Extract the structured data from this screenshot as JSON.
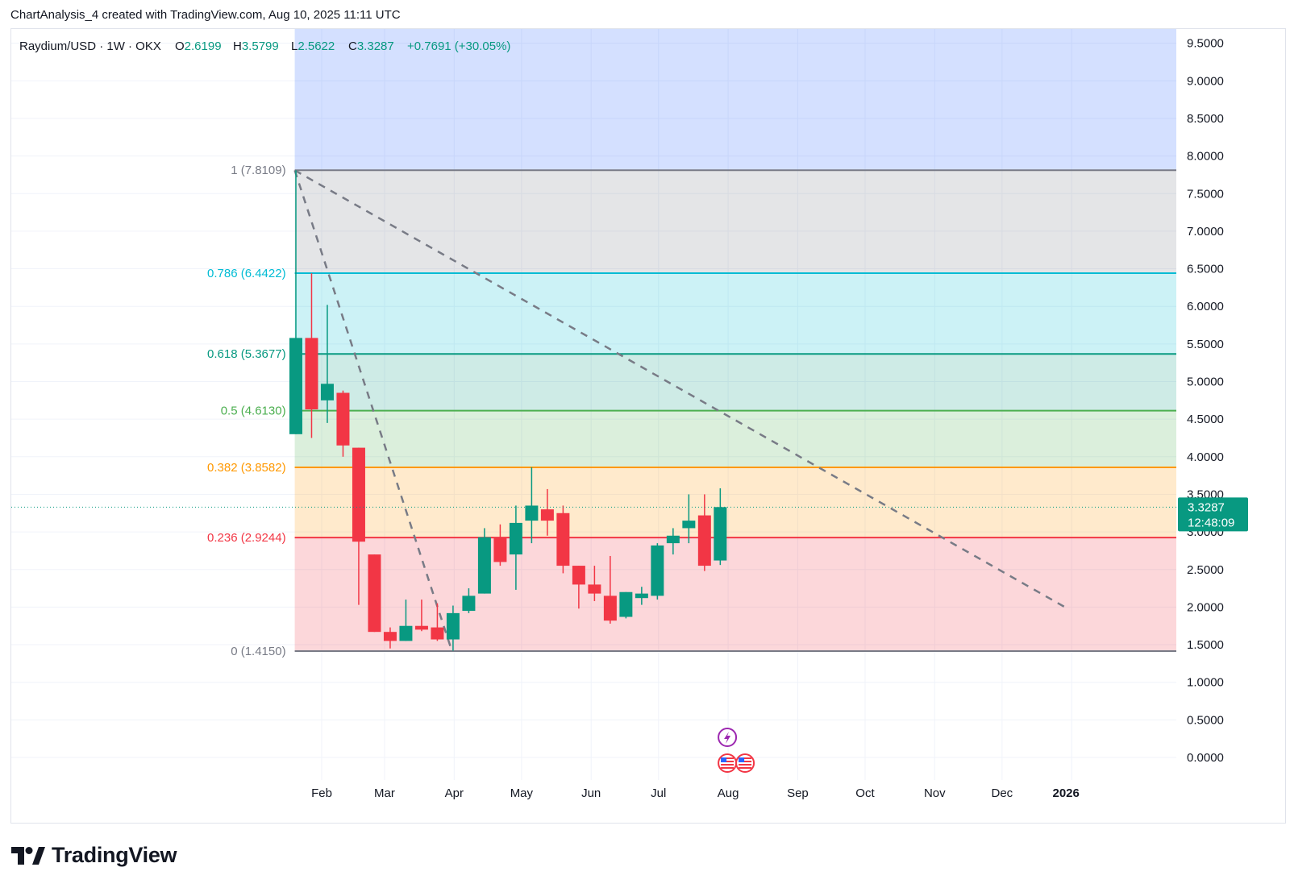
{
  "header": {
    "attribution": "ChartAnalysis_4 created with TradingView.com, Aug 10, 2025 11:11 UTC"
  },
  "legend": {
    "symbol": "Raydium/USD · 1W · OKX",
    "open_label": "O",
    "open_value": "2.6199",
    "high_label": "H",
    "high_value": "3.5799",
    "low_label": "L",
    "low_value": "2.5622",
    "close_label": "C",
    "close_value": "3.3287",
    "change": "+0.7691 (+30.05%)"
  },
  "price_tag": {
    "price": "3.3287",
    "countdown": "12:48:09"
  },
  "footer": {
    "brand": "TradingView"
  },
  "colors": {
    "up": "#089981",
    "down": "#f23645",
    "grid": "#f0f3fa",
    "axis_text": "#131722",
    "fib_1": "#787b86",
    "fib_786": "#00bcd4",
    "fib_618": "#089981",
    "fib_5": "#4caf50",
    "fib_382": "#ff9800",
    "fib_236": "#f23645",
    "fib_0": "#787b86",
    "trendline": "#787b86",
    "event_lightning": "#9c27b0"
  },
  "chart_data": {
    "type": "candlestick",
    "symbol": "Raydium/USD",
    "timeframe": "1W",
    "exchange": "OKX",
    "ylim": [
      0,
      9.5
    ],
    "y_ticks": [
      "9.5000",
      "9.0000",
      "8.5000",
      "8.0000",
      "7.5000",
      "7.0000",
      "6.5000",
      "6.0000",
      "5.5000",
      "5.0000",
      "4.5000",
      "4.0000",
      "3.5000",
      "3.0000",
      "2.5000",
      "2.0000",
      "1.5000",
      "1.0000",
      "0.5000",
      "0.0000"
    ],
    "x_ticks": [
      "Feb",
      "Mar",
      "Apr",
      "May",
      "Jun",
      "Jul",
      "Aug",
      "Sep",
      "Oct",
      "Nov",
      "Dec",
      "2026"
    ],
    "x_tick_dates": [
      "2025-02-01",
      "2025-03-01",
      "2025-04-01",
      "2025-05-01",
      "2025-06-01",
      "2025-07-01",
      "2025-08-01",
      "2025-09-01",
      "2025-10-01",
      "2025-11-01",
      "2025-12-01",
      "2026-01-01"
    ],
    "candles": [
      {
        "date": "2025-01-20",
        "open": 4.3,
        "high": 7.81,
        "low": 4.3,
        "close": 5.58
      },
      {
        "date": "2025-01-27",
        "open": 5.58,
        "high": 6.44,
        "low": 4.25,
        "close": 4.63
      },
      {
        "date": "2025-02-03",
        "open": 4.75,
        "high": 6.02,
        "low": 4.45,
        "close": 4.97
      },
      {
        "date": "2025-02-10",
        "open": 4.85,
        "high": 4.88,
        "low": 4.0,
        "close": 4.15
      },
      {
        "date": "2025-02-17",
        "open": 4.12,
        "high": 4.12,
        "low": 2.03,
        "close": 2.87
      },
      {
        "date": "2025-02-24",
        "open": 2.7,
        "high": 2.7,
        "low": 1.67,
        "close": 1.67
      },
      {
        "date": "2025-03-03",
        "open": 1.67,
        "high": 1.73,
        "low": 1.45,
        "close": 1.55
      },
      {
        "date": "2025-03-10",
        "open": 1.55,
        "high": 2.1,
        "low": 1.55,
        "close": 1.75
      },
      {
        "date": "2025-03-17",
        "open": 1.75,
        "high": 2.1,
        "low": 1.68,
        "close": 1.7
      },
      {
        "date": "2025-03-24",
        "open": 1.73,
        "high": 2.05,
        "low": 1.55,
        "close": 1.57
      },
      {
        "date": "2025-03-31",
        "open": 1.57,
        "high": 2.02,
        "low": 1.42,
        "close": 1.92
      },
      {
        "date": "2025-04-07",
        "open": 1.95,
        "high": 2.25,
        "low": 1.92,
        "close": 2.15
      },
      {
        "date": "2025-04-14",
        "open": 2.18,
        "high": 3.05,
        "low": 2.18,
        "close": 2.93
      },
      {
        "date": "2025-04-21",
        "open": 2.93,
        "high": 3.1,
        "low": 2.55,
        "close": 2.6
      },
      {
        "date": "2025-04-28",
        "open": 2.7,
        "high": 3.35,
        "low": 2.23,
        "close": 3.12
      },
      {
        "date": "2025-05-05",
        "open": 3.15,
        "high": 3.86,
        "low": 2.85,
        "close": 3.35
      },
      {
        "date": "2025-05-12",
        "open": 3.3,
        "high": 3.57,
        "low": 2.95,
        "close": 3.15
      },
      {
        "date": "2025-05-19",
        "open": 3.25,
        "high": 3.35,
        "low": 2.45,
        "close": 2.55
      },
      {
        "date": "2025-05-26",
        "open": 2.55,
        "high": 2.55,
        "low": 1.98,
        "close": 2.3
      },
      {
        "date": "2025-06-02",
        "open": 2.3,
        "high": 2.55,
        "low": 2.08,
        "close": 2.18
      },
      {
        "date": "2025-06-09",
        "open": 2.15,
        "high": 2.68,
        "low": 1.78,
        "close": 1.82
      },
      {
        "date": "2025-06-16",
        "open": 1.87,
        "high": 2.2,
        "low": 1.85,
        "close": 2.2
      },
      {
        "date": "2025-06-23",
        "open": 2.12,
        "high": 2.27,
        "low": 2.03,
        "close": 2.18
      },
      {
        "date": "2025-06-30",
        "open": 2.15,
        "high": 2.85,
        "low": 2.1,
        "close": 2.82
      },
      {
        "date": "2025-07-07",
        "open": 2.85,
        "high": 3.05,
        "low": 2.7,
        "close": 2.95
      },
      {
        "date": "2025-07-14",
        "open": 3.05,
        "high": 3.5,
        "low": 2.85,
        "close": 3.15
      },
      {
        "date": "2025-07-21",
        "open": 3.22,
        "high": 3.5,
        "low": 2.48,
        "close": 2.55
      },
      {
        "date": "2025-07-28",
        "open": 2.62,
        "high": 3.58,
        "low": 2.56,
        "close": 3.33
      }
    ],
    "fibonacci": [
      {
        "label": "1 (7.8109)",
        "price": 7.8109
      },
      {
        "label": "0.786 (6.4422)",
        "price": 6.4422
      },
      {
        "label": "0.618 (5.3677)",
        "price": 5.3677
      },
      {
        "label": "0.5 (4.6130)",
        "price": 4.613
      },
      {
        "label": "0.382 (3.8582)",
        "price": 3.8582
      },
      {
        "label": "0.236 (2.9244)",
        "price": 2.9244
      },
      {
        "label": "0 (1.4150)",
        "price": 1.415
      }
    ],
    "trendlines": [
      {
        "from": {
          "date": "2025-01-20",
          "price": 7.81
        },
        "to": {
          "date": "2025-03-31",
          "price": 1.415
        }
      },
      {
        "from": {
          "date": "2025-01-20",
          "price": 7.81
        },
        "to": {
          "date": "2025-12-29",
          "price": 2.0
        }
      }
    ],
    "last_price": 3.3287
  }
}
